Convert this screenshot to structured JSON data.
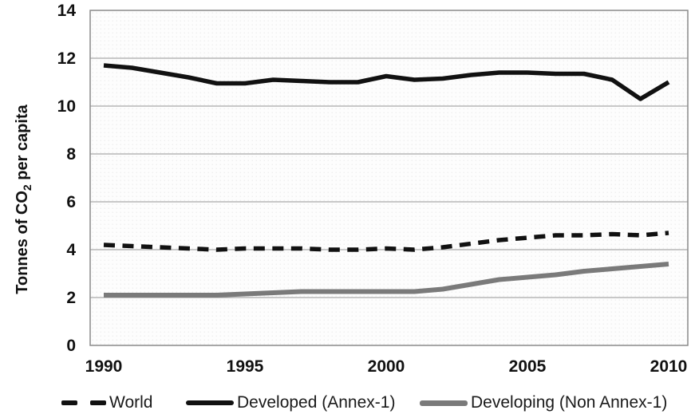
{
  "figure": {
    "ylabel_pre": "Tonnes of CO",
    "ylabel_sub": "2",
    "ylabel_post": " per capita"
  },
  "chart_data": {
    "type": "line",
    "title": "",
    "xlabel": "",
    "ylabel": "Tonnes of CO2 per capita",
    "x": [
      1990,
      1991,
      1992,
      1993,
      1994,
      1995,
      1996,
      1997,
      1998,
      1999,
      2000,
      2001,
      2002,
      2003,
      2004,
      2005,
      2006,
      2007,
      2008,
      2009,
      2010
    ],
    "series": [
      {
        "name": "World",
        "style": "dashed",
        "color": "#111111",
        "values": [
          4.2,
          4.15,
          4.1,
          4.05,
          4.0,
          4.05,
          4.05,
          4.05,
          4.0,
          4.0,
          4.05,
          4.0,
          4.1,
          4.25,
          4.4,
          4.5,
          4.6,
          4.6,
          4.65,
          4.6,
          4.7
        ]
      },
      {
        "name": "Developed (Annex-1)",
        "style": "solid",
        "color": "#111111",
        "values": [
          11.7,
          11.6,
          11.4,
          11.2,
          10.95,
          10.95,
          11.1,
          11.05,
          11.0,
          11.0,
          11.25,
          11.1,
          11.15,
          11.3,
          11.4,
          11.4,
          11.35,
          11.35,
          11.1,
          10.3,
          11.0
        ]
      },
      {
        "name": "Developing (Non Annex-1)",
        "style": "solid",
        "color": "#7a7a7a",
        "values": [
          2.1,
          2.1,
          2.1,
          2.1,
          2.1,
          2.15,
          2.2,
          2.25,
          2.25,
          2.25,
          2.25,
          2.25,
          2.35,
          2.55,
          2.75,
          2.85,
          2.95,
          3.1,
          3.2,
          3.3,
          3.4
        ]
      }
    ],
    "ylim": [
      0,
      14
    ],
    "yticks": [
      0,
      2,
      4,
      6,
      8,
      10,
      12,
      14
    ],
    "xticks": [
      1990,
      1995,
      2000,
      2005,
      2010
    ],
    "grid": "horizontal",
    "legend_position": "bottom",
    "colors": {
      "grid": "#a8a8a8",
      "frame": "#8a8a8a",
      "tick_label": "#111111",
      "plot_bg": "#fdfdfd",
      "plot_bg_dot": "#ebebeb"
    }
  }
}
